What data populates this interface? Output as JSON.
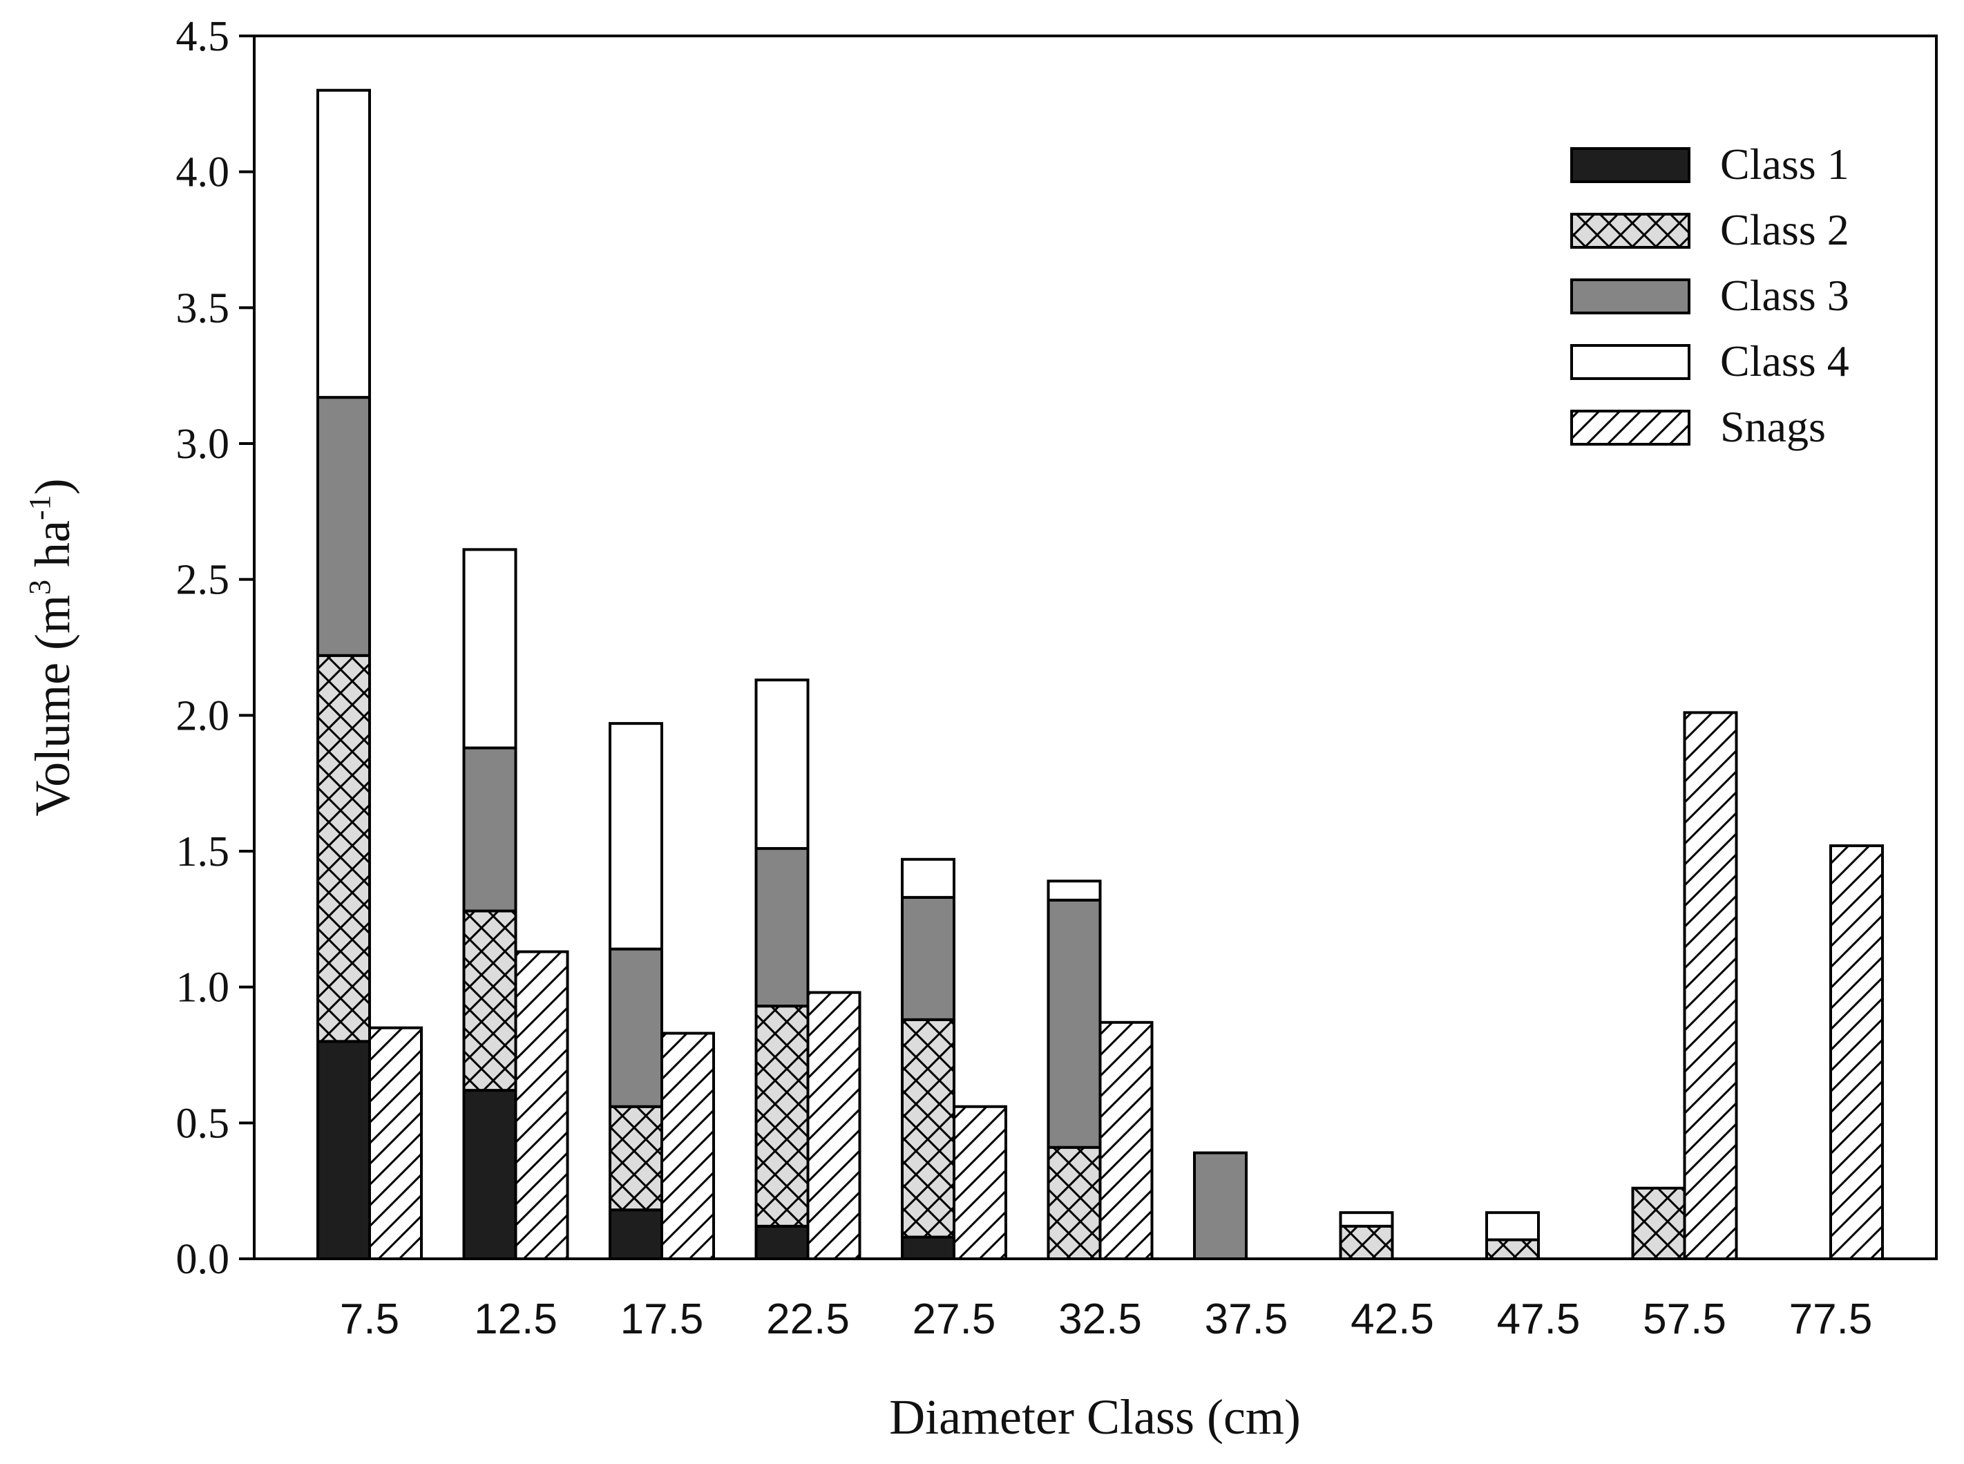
{
  "chart_data": {
    "type": "bar",
    "layout": "stacked bars (Class 1-4) with adjacent Snags bar",
    "xlabel": "Diameter Class (cm)",
    "ylabel": "Volume (m³ ha⁻¹)",
    "ylabel_parts": {
      "main": "Volume (m",
      "sup1": "3",
      "mid": " ha",
      "sup2": "-1",
      "end": ")"
    },
    "ylim": [
      0,
      4.5
    ],
    "yticks": [
      "0.0",
      "0.5",
      "1.0",
      "1.5",
      "2.0",
      "2.5",
      "3.0",
      "3.5",
      "4.0",
      "4.5"
    ],
    "categories": [
      "7.5",
      "12.5",
      "17.5",
      "22.5",
      "27.5",
      "32.5",
      "37.5",
      "42.5",
      "47.5",
      "57.5",
      "77.5"
    ],
    "legend_position": "top-right",
    "grid": false,
    "series": [
      {
        "name": "Class 1",
        "stack": "live",
        "fill": "solid-black",
        "color": "#1e1e1e",
        "values": [
          0.8,
          0.62,
          0.18,
          0.12,
          0.08,
          0,
          0,
          0,
          0,
          0,
          0
        ]
      },
      {
        "name": "Class 2",
        "stack": "live",
        "fill": "crosshatch",
        "color": "#dcdcdc",
        "values": [
          1.42,
          0.66,
          0.38,
          0.81,
          0.8,
          0.41,
          0,
          0.12,
          0.07,
          0.26,
          0
        ]
      },
      {
        "name": "Class 3",
        "stack": "live",
        "fill": "solid-gray",
        "color": "#858585",
        "values": [
          0.95,
          0.6,
          0.58,
          0.58,
          0.45,
          0.91,
          0.39,
          0,
          0,
          0,
          0
        ]
      },
      {
        "name": "Class 4",
        "stack": "live",
        "fill": "solid-white",
        "color": "#ffffff",
        "values": [
          1.13,
          0.73,
          0.83,
          0.62,
          0.14,
          0.07,
          0,
          0.05,
          0.1,
          0,
          0
        ]
      },
      {
        "name": "Snags",
        "stack": "snag",
        "fill": "diagonal-hatch",
        "color": "#ffffff",
        "values": [
          0.85,
          1.13,
          0.83,
          0.98,
          0.56,
          0.87,
          0,
          0,
          0,
          2.01,
          1.52
        ]
      }
    ]
  }
}
